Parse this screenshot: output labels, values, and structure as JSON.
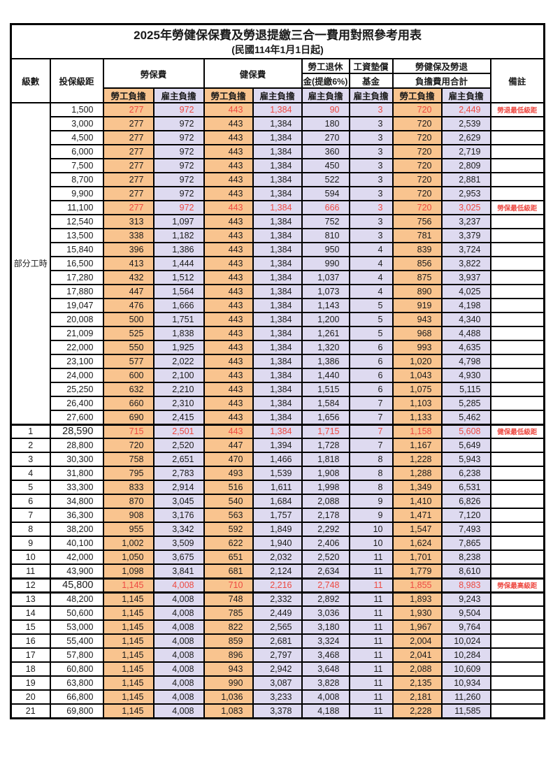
{
  "title": "2025年勞健保保費及勞退提繳三合一費用對照參考用表",
  "subtitle": "(民國114年1月1日起)",
  "colors": {
    "worker_column_bg": "#f9c48f",
    "employer_column_bg": "#dedaf0",
    "highlight_text": "#ee4a42",
    "grid": "#000000"
  },
  "header": {
    "level": "級數",
    "salary": "投保級距",
    "labor_ins": "勞保費",
    "health_ins": "健保費",
    "pension_top": "勞工退休",
    "pension_bottom": "金(提繳6%)",
    "fund_top": "工資墊償",
    "fund_bottom": "基金",
    "total_top": "勞健保及勞退",
    "total_bottom": "負擔費用合計",
    "remark": "備註",
    "worker": "勞工負擔",
    "employer": "雇主負擔"
  },
  "part_time": {
    "label": "部分工時",
    "span": 23
  },
  "rows": [
    {
      "level": "",
      "salary": "1,500",
      "v": [
        "277",
        "972",
        "443",
        "1,384",
        "90",
        "3",
        "720",
        "2,449"
      ],
      "remark": "勞退最低級距",
      "red": true
    },
    {
      "level": "",
      "salary": "3,000",
      "v": [
        "277",
        "972",
        "443",
        "1,384",
        "180",
        "3",
        "720",
        "2,539"
      ],
      "remark": ""
    },
    {
      "level": "",
      "salary": "4,500",
      "v": [
        "277",
        "972",
        "443",
        "1,384",
        "270",
        "3",
        "720",
        "2,629"
      ],
      "remark": ""
    },
    {
      "level": "",
      "salary": "6,000",
      "v": [
        "277",
        "972",
        "443",
        "1,384",
        "360",
        "3",
        "720",
        "2,719"
      ],
      "remark": ""
    },
    {
      "level": "",
      "salary": "7,500",
      "v": [
        "277",
        "972",
        "443",
        "1,384",
        "450",
        "3",
        "720",
        "2,809"
      ],
      "remark": ""
    },
    {
      "level": "",
      "salary": "8,700",
      "v": [
        "277",
        "972",
        "443",
        "1,384",
        "522",
        "3",
        "720",
        "2,881"
      ],
      "remark": ""
    },
    {
      "level": "",
      "salary": "9,900",
      "v": [
        "277",
        "972",
        "443",
        "1,384",
        "594",
        "3",
        "720",
        "2,953"
      ],
      "remark": ""
    },
    {
      "level": "",
      "salary": "11,100",
      "v": [
        "277",
        "972",
        "443",
        "1,384",
        "666",
        "3",
        "720",
        "3,025"
      ],
      "remark": "勞保最低級距",
      "red": true
    },
    {
      "level": "",
      "salary": "12,540",
      "v": [
        "313",
        "1,097",
        "443",
        "1,384",
        "752",
        "3",
        "756",
        "3,237"
      ],
      "remark": ""
    },
    {
      "level": "",
      "salary": "13,500",
      "v": [
        "338",
        "1,182",
        "443",
        "1,384",
        "810",
        "3",
        "781",
        "3,379"
      ],
      "remark": ""
    },
    {
      "level": "",
      "salary": "15,840",
      "v": [
        "396",
        "1,386",
        "443",
        "1,384",
        "950",
        "4",
        "839",
        "3,724"
      ],
      "remark": ""
    },
    {
      "level": "",
      "salary": "16,500",
      "v": [
        "413",
        "1,444",
        "443",
        "1,384",
        "990",
        "4",
        "856",
        "3,822"
      ],
      "remark": ""
    },
    {
      "level": "",
      "salary": "17,280",
      "v": [
        "432",
        "1,512",
        "443",
        "1,384",
        "1,037",
        "4",
        "875",
        "3,937"
      ],
      "remark": ""
    },
    {
      "level": "",
      "salary": "17,880",
      "v": [
        "447",
        "1,564",
        "443",
        "1,384",
        "1,073",
        "4",
        "890",
        "4,025"
      ],
      "remark": ""
    },
    {
      "level": "",
      "salary": "19,047",
      "v": [
        "476",
        "1,666",
        "443",
        "1,384",
        "1,143",
        "5",
        "919",
        "4,198"
      ],
      "remark": ""
    },
    {
      "level": "",
      "salary": "20,008",
      "v": [
        "500",
        "1,751",
        "443",
        "1,384",
        "1,200",
        "5",
        "943",
        "4,340"
      ],
      "remark": ""
    },
    {
      "level": "",
      "salary": "21,009",
      "v": [
        "525",
        "1,838",
        "443",
        "1,384",
        "1,261",
        "5",
        "968",
        "4,488"
      ],
      "remark": ""
    },
    {
      "level": "",
      "salary": "22,000",
      "v": [
        "550",
        "1,925",
        "443",
        "1,384",
        "1,320",
        "6",
        "993",
        "4,635"
      ],
      "remark": ""
    },
    {
      "level": "",
      "salary": "23,100",
      "v": [
        "577",
        "2,022",
        "443",
        "1,384",
        "1,386",
        "6",
        "1,020",
        "4,798"
      ],
      "remark": ""
    },
    {
      "level": "",
      "salary": "24,000",
      "v": [
        "600",
        "2,100",
        "443",
        "1,384",
        "1,440",
        "6",
        "1,043",
        "4,930"
      ],
      "remark": ""
    },
    {
      "level": "",
      "salary": "25,250",
      "v": [
        "632",
        "2,210",
        "443",
        "1,384",
        "1,515",
        "6",
        "1,075",
        "5,115"
      ],
      "remark": ""
    },
    {
      "level": "",
      "salary": "26,400",
      "v": [
        "660",
        "2,310",
        "443",
        "1,384",
        "1,584",
        "7",
        "1,103",
        "5,285"
      ],
      "remark": ""
    },
    {
      "level": "",
      "salary": "27,600",
      "v": [
        "690",
        "2,415",
        "443",
        "1,384",
        "1,656",
        "7",
        "1,133",
        "5,462"
      ],
      "remark": ""
    },
    {
      "level": "1",
      "salary": "28,590",
      "big": true,
      "v": [
        "715",
        "2,501",
        "443",
        "1,384",
        "1,715",
        "7",
        "1,158",
        "5,608"
      ],
      "remark": "健保最低級距",
      "red": true,
      "thick_top": true
    },
    {
      "level": "2",
      "salary": "28,800",
      "v": [
        "720",
        "2,520",
        "447",
        "1,394",
        "1,728",
        "7",
        "1,167",
        "5,649"
      ],
      "remark": ""
    },
    {
      "level": "3",
      "salary": "30,300",
      "v": [
        "758",
        "2,651",
        "470",
        "1,466",
        "1,818",
        "8",
        "1,228",
        "5,943"
      ],
      "remark": ""
    },
    {
      "level": "4",
      "salary": "31,800",
      "v": [
        "795",
        "2,783",
        "493",
        "1,539",
        "1,908",
        "8",
        "1,288",
        "6,238"
      ],
      "remark": ""
    },
    {
      "level": "5",
      "salary": "33,300",
      "v": [
        "833",
        "2,914",
        "516",
        "1,611",
        "1,998",
        "8",
        "1,349",
        "6,531"
      ],
      "remark": ""
    },
    {
      "level": "6",
      "salary": "34,800",
      "v": [
        "870",
        "3,045",
        "540",
        "1,684",
        "2,088",
        "9",
        "1,410",
        "6,826"
      ],
      "remark": ""
    },
    {
      "level": "7",
      "salary": "36,300",
      "v": [
        "908",
        "3,176",
        "563",
        "1,757",
        "2,178",
        "9",
        "1,471",
        "7,120"
      ],
      "remark": ""
    },
    {
      "level": "8",
      "salary": "38,200",
      "v": [
        "955",
        "3,342",
        "592",
        "1,849",
        "2,292",
        "10",
        "1,547",
        "7,493"
      ],
      "remark": ""
    },
    {
      "level": "9",
      "salary": "40,100",
      "v": [
        "1,002",
        "3,509",
        "622",
        "1,940",
        "2,406",
        "10",
        "1,624",
        "7,865"
      ],
      "remark": ""
    },
    {
      "level": "10",
      "salary": "42,000",
      "v": [
        "1,050",
        "3,675",
        "651",
        "2,032",
        "2,520",
        "11",
        "1,701",
        "8,238"
      ],
      "remark": ""
    },
    {
      "level": "11",
      "salary": "43,900",
      "v": [
        "1,098",
        "3,841",
        "681",
        "2,124",
        "2,634",
        "11",
        "1,779",
        "8,610"
      ],
      "remark": ""
    },
    {
      "level": "12",
      "salary": "45,800",
      "big": true,
      "v": [
        "1,145",
        "4,008",
        "710",
        "2,216",
        "2,748",
        "11",
        "1,855",
        "8,983"
      ],
      "remark": "勞保最高級距",
      "red": true,
      "thick_top": true,
      "thick_bottom": true
    },
    {
      "level": "13",
      "salary": "48,200",
      "v": [
        "1,145",
        "4,008",
        "748",
        "2,332",
        "2,892",
        "11",
        "1,893",
        "9,243"
      ],
      "remark": ""
    },
    {
      "level": "14",
      "salary": "50,600",
      "v": [
        "1,145",
        "4,008",
        "785",
        "2,449",
        "3,036",
        "11",
        "1,930",
        "9,504"
      ],
      "remark": ""
    },
    {
      "level": "15",
      "salary": "53,000",
      "v": [
        "1,145",
        "4,008",
        "822",
        "2,565",
        "3,180",
        "11",
        "1,967",
        "9,764"
      ],
      "remark": ""
    },
    {
      "level": "16",
      "salary": "55,400",
      "v": [
        "1,145",
        "4,008",
        "859",
        "2,681",
        "3,324",
        "11",
        "2,004",
        "10,024"
      ],
      "remark": ""
    },
    {
      "level": "17",
      "salary": "57,800",
      "v": [
        "1,145",
        "4,008",
        "896",
        "2,797",
        "3,468",
        "11",
        "2,041",
        "10,284"
      ],
      "remark": ""
    },
    {
      "level": "18",
      "salary": "60,800",
      "v": [
        "1,145",
        "4,008",
        "943",
        "2,942",
        "3,648",
        "11",
        "2,088",
        "10,609"
      ],
      "remark": ""
    },
    {
      "level": "19",
      "salary": "63,800",
      "v": [
        "1,145",
        "4,008",
        "990",
        "3,087",
        "3,828",
        "11",
        "2,135",
        "10,934"
      ],
      "remark": ""
    },
    {
      "level": "20",
      "salary": "66,800",
      "v": [
        "1,145",
        "4,008",
        "1,036",
        "3,233",
        "4,008",
        "11",
        "2,181",
        "11,260"
      ],
      "remark": ""
    },
    {
      "level": "21",
      "salary": "69,800",
      "v": [
        "1,145",
        "4,008",
        "1,083",
        "3,378",
        "4,188",
        "11",
        "2,228",
        "11,585"
      ],
      "remark": ""
    }
  ]
}
